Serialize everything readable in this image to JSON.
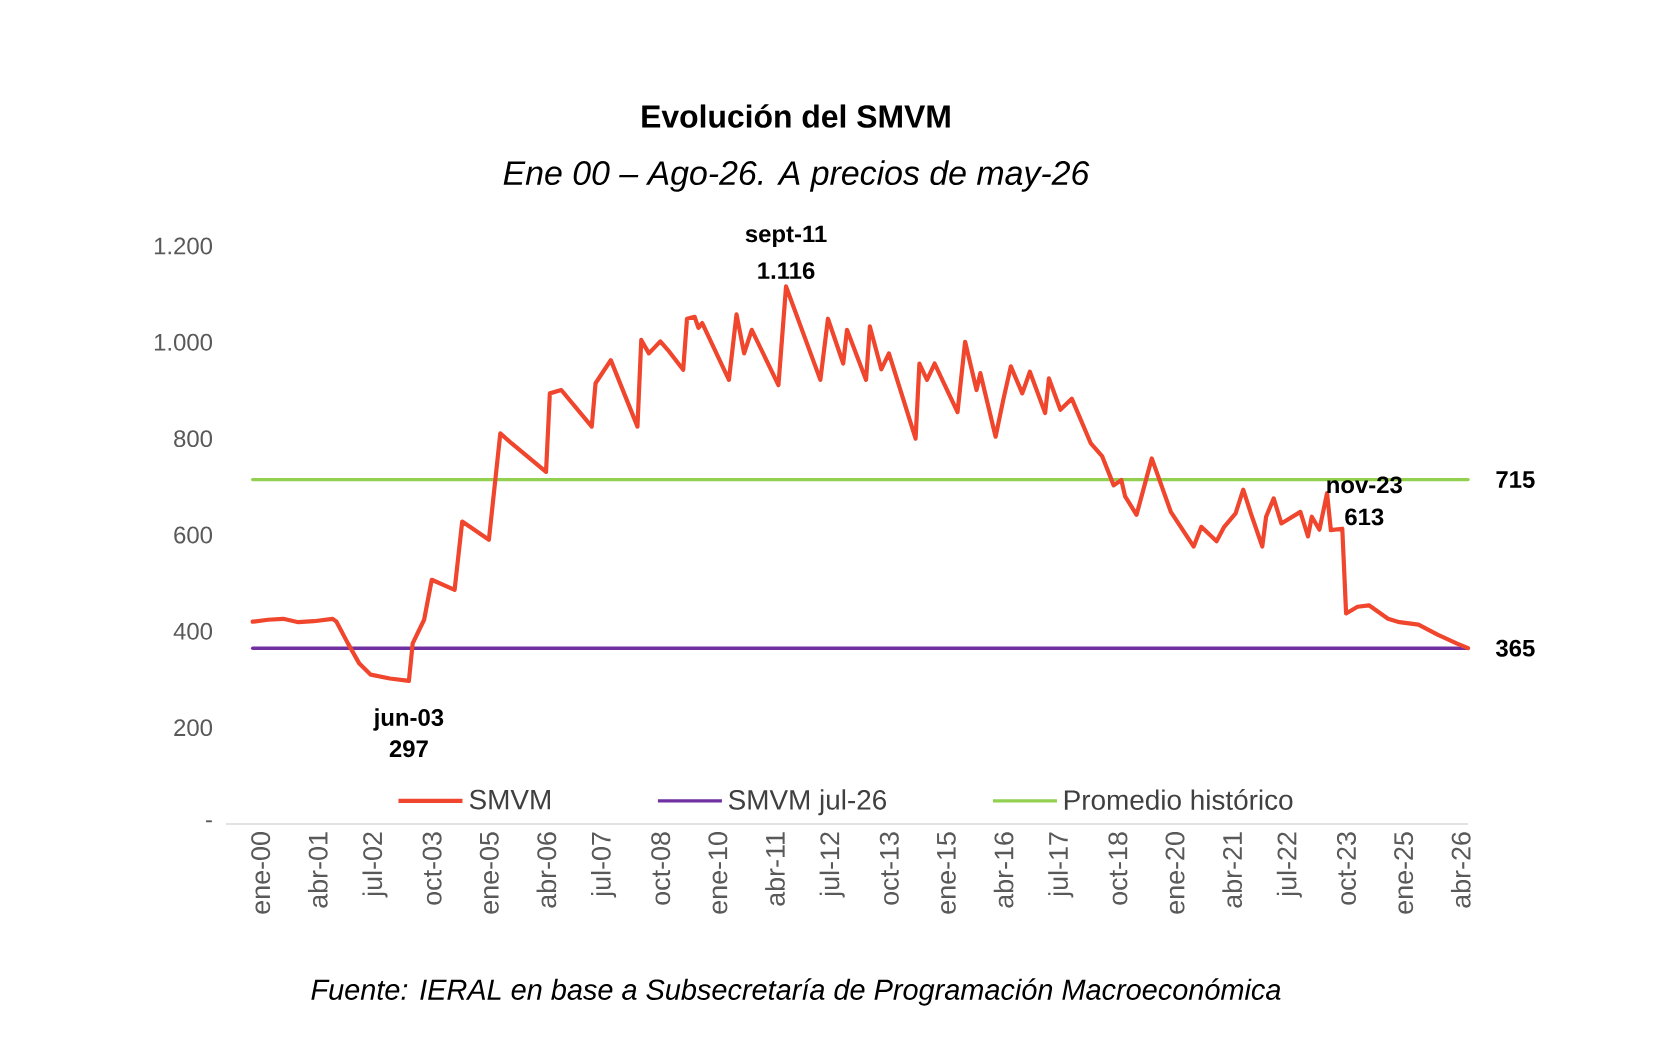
{
  "chart_data": {
    "type": "line",
    "title": "Evolución del SMVM",
    "subtitle": "Ene 00 – Ago-26. A precios de may-26",
    "xlim": [
      "1999-06",
      "2026-08"
    ],
    "ylim": [
      0,
      1200
    ],
    "xticks": [
      {
        "value": "2000-01",
        "label": "ene-00"
      },
      {
        "value": "2001-04",
        "label": "abr-01"
      },
      {
        "value": "2002-07",
        "label": "jul-02"
      },
      {
        "value": "2003-10",
        "label": "oct-03"
      },
      {
        "value": "2005-01",
        "label": "ene-05"
      },
      {
        "value": "2006-04",
        "label": "abr-06"
      },
      {
        "value": "2007-07",
        "label": "jul-07"
      },
      {
        "value": "2008-10",
        "label": "oct-08"
      },
      {
        "value": "2010-01",
        "label": "ene-10"
      },
      {
        "value": "2011-04",
        "label": "abr-11"
      },
      {
        "value": "2012-07",
        "label": "jul-12"
      },
      {
        "value": "2013-10",
        "label": "oct-13"
      },
      {
        "value": "2015-01",
        "label": "ene-15"
      },
      {
        "value": "2016-04",
        "label": "abr-16"
      },
      {
        "value": "2017-07",
        "label": "jul-17"
      },
      {
        "value": "2018-10",
        "label": "oct-18"
      },
      {
        "value": "2020-01",
        "label": "ene-20"
      },
      {
        "value": "2021-04",
        "label": "abr-21"
      },
      {
        "value": "2022-07",
        "label": "jul-22"
      },
      {
        "value": "2023-10",
        "label": "oct-23"
      },
      {
        "value": "2025-01",
        "label": "ene-25"
      },
      {
        "value": "2026-04",
        "label": "abr-26"
      }
    ],
    "yticks": [
      {
        "value": 0,
        "label": "-"
      },
      200,
      400,
      600,
      800,
      {
        "value": 1000,
        "label": "1.000"
      },
      {
        "value": 1200,
        "label": "1.200"
      }
    ],
    "legend": "bottom",
    "series": [
      {
        "name": "SMVM",
        "color": "#f0462d",
        "x": [
          "2000-01",
          "2000-05",
          "2000-09",
          "2001-01",
          "2001-05",
          "2001-10",
          "2001-11",
          "2002-02",
          "2002-05",
          "2002-08",
          "2003-01",
          "2003-06",
          "2003-07",
          "2003-10",
          "2003-12",
          "2004-06",
          "2004-08",
          "2005-03",
          "2005-06",
          "2005-09",
          "2006-06",
          "2006-07",
          "2006-10",
          "2007-06",
          "2007-07",
          "2007-11",
          "2008-06",
          "2008-07",
          "2008-09",
          "2008-12",
          "2009-02",
          "2009-06",
          "2009-07",
          "2009-09",
          "2009-10",
          "2009-11",
          "2010-06",
          "2010-08",
          "2010-10",
          "2010-12",
          "2011-07",
          "2011-09",
          "2012-06",
          "2012-08",
          "2012-12",
          "2013-01",
          "2013-06",
          "2013-07",
          "2013-10",
          "2013-12",
          "2014-07",
          "2014-08",
          "2014-10",
          "2014-12",
          "2015-06",
          "2015-08",
          "2015-11",
          "2015-12",
          "2016-04",
          "2016-06",
          "2016-08",
          "2016-11",
          "2017-01",
          "2017-05",
          "2017-06",
          "2017-09",
          "2017-12",
          "2018-05",
          "2018-08",
          "2018-11",
          "2019-01",
          "2019-02",
          "2019-05",
          "2019-09",
          "2020-02",
          "2020-08",
          "2020-10",
          "2021-02",
          "2021-04",
          "2021-07",
          "2021-09",
          "2021-11",
          "2022-02",
          "2022-03",
          "2022-05",
          "2022-07",
          "2022-12",
          "2023-02",
          "2023-03",
          "2023-05",
          "2023-07",
          "2023-08",
          "2023-11",
          "2023-12",
          "2024-03",
          "2024-06",
          "2024-11",
          "2025-02",
          "2025-07",
          "2025-12",
          "2026-05",
          "2026-08"
        ],
        "values": [
          420,
          424,
          426,
          419,
          421,
          426,
          420,
          375,
          333,
          310,
          302,
          297,
          375,
          424,
          507,
          486,
          628,
          590,
          811,
          790,
          731,
          894,
          901,
          825,
          915,
          963,
          825,
          1005,
          977,
          1002,
          984,
          943,
          1049,
          1053,
          1030,
          1040,
          922,
          1058,
          977,
          1026,
          911,
          1116,
          922,
          1049,
          956,
          1026,
          922,
          1033,
          944,
          977,
          800,
          956,
          922,
          956,
          855,
          1001,
          901,
          936,
          804,
          880,
          950,
          894,
          939,
          853,
          925,
          860,
          883,
          790,
          763,
          703,
          714,
          680,
          642,
          759,
          648,
          576,
          617,
          587,
          617,
          645,
          694,
          645,
          576,
          638,
          676,
          624,
          648,
          597,
          638,
          611,
          687,
          610,
          613,
          437,
          451,
          454,
          426,
          419,
          414,
          393,
          375,
          365
        ]
      },
      {
        "name": "SMVM jul-26",
        "color": "#7030a0",
        "x": [
          "2000-01",
          "2026-08"
        ],
        "values": [
          365,
          365
        ]
      },
      {
        "name": "Promedio histórico",
        "color": "#92d050",
        "x": [
          "2000-01",
          "2026-08"
        ],
        "values": [
          715,
          715
        ]
      }
    ],
    "annotations": [
      {
        "text": "sept-11",
        "x": "2011-09",
        "y": 1116
      },
      {
        "text": "1.116",
        "x": "2011-09",
        "y": 1116
      },
      {
        "text": "jun-03",
        "x": "2003-06",
        "y": 297
      },
      {
        "text": "297",
        "x": "2003-06",
        "y": 297
      },
      {
        "text": "nov-23",
        "x": "2023-11",
        "y": 613
      },
      {
        "text": "613",
        "x": "2023-11",
        "y": 613
      },
      {
        "text": "715",
        "x": "2026-08",
        "y": 715
      },
      {
        "text": "365",
        "x": "2026-08",
        "y": 365
      },
      "Fuente: IERAL en base a Subsecretaría de Programación Macroeconómica"
    ]
  }
}
